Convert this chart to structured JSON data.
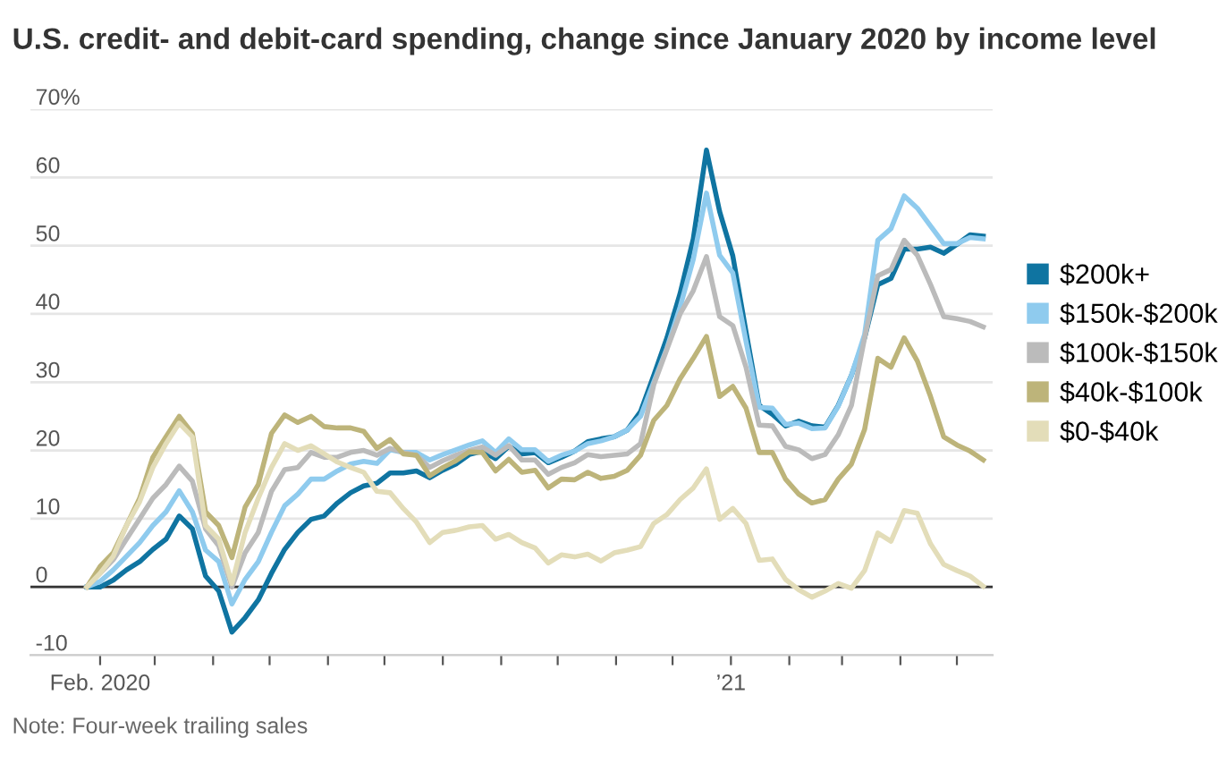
{
  "chart_data": {
    "type": "line",
    "title": "U.S. credit- and debit-card spending, change since January 2020 by income level",
    "x": [
      "2020-01-25",
      "2020-02-01",
      "2020-02-08",
      "2020-02-15",
      "2020-02-22",
      "2020-02-29",
      "2020-03-07",
      "2020-03-14",
      "2020-03-21",
      "2020-03-28",
      "2020-04-04",
      "2020-04-11",
      "2020-04-18",
      "2020-04-25",
      "2020-05-02",
      "2020-05-09",
      "2020-05-16",
      "2020-05-23",
      "2020-05-30",
      "2020-06-06",
      "2020-06-13",
      "2020-06-20",
      "2020-06-27",
      "2020-07-04",
      "2020-07-11",
      "2020-07-18",
      "2020-07-25",
      "2020-08-01",
      "2020-08-08",
      "2020-08-15",
      "2020-08-22",
      "2020-08-29",
      "2020-09-05",
      "2020-09-12",
      "2020-09-19",
      "2020-09-26",
      "2020-10-03",
      "2020-10-10",
      "2020-10-17",
      "2020-10-24",
      "2020-10-31",
      "2020-11-07",
      "2020-11-14",
      "2020-11-21",
      "2020-11-28",
      "2020-12-05",
      "2020-12-12",
      "2020-12-19",
      "2020-12-26",
      "2021-01-02",
      "2021-01-09",
      "2021-01-16",
      "2021-01-23",
      "2021-01-30",
      "2021-02-06",
      "2021-02-13",
      "2021-02-20",
      "2021-02-27",
      "2021-03-06",
      "2021-03-13",
      "2021-03-20",
      "2021-03-27",
      "2021-04-03",
      "2021-04-10",
      "2021-04-17",
      "2021-04-24",
      "2021-05-01",
      "2021-05-08",
      "2021-05-15"
    ],
    "series": [
      {
        "name": "$200k+",
        "color": "#0f74a1",
        "values": [
          0,
          0,
          1,
          2.5,
          3.7,
          5.5,
          7,
          10.4,
          8.5,
          1.6,
          -0.6,
          -6.6,
          -4.5,
          -1.9,
          2,
          5.5,
          8,
          9.9,
          10.4,
          12.3,
          13.8,
          14.8,
          15.2,
          16.7,
          16.7,
          17,
          16,
          17.1,
          18,
          19.4,
          19.9,
          18.8,
          20.6,
          19.5,
          19.7,
          18.2,
          19,
          19.9,
          21.3,
          21.7,
          22,
          23,
          25.7,
          31,
          36.5,
          43,
          51,
          64,
          55,
          48.5,
          37.4,
          26.6,
          25.3,
          23.6,
          24.3,
          23.6,
          23.4,
          26.6,
          31,
          36.5,
          44.3,
          45.2,
          49.5,
          49.5,
          49.8,
          48.9,
          50.2,
          51.6,
          51.4
        ]
      },
      {
        "name": "$150k-$200k",
        "color": "#8fcbee",
        "values": [
          0,
          0.8,
          2.5,
          4.5,
          6.5,
          9,
          11,
          14.1,
          11,
          5.4,
          3.7,
          -2.5,
          1.1,
          3.7,
          8,
          11.9,
          13.6,
          15.8,
          15.8,
          17,
          18,
          18.4,
          18.1,
          20.1,
          19.7,
          19.7,
          18.6,
          19.4,
          20.1,
          20.8,
          21.4,
          19.7,
          21.7,
          20.1,
          20.1,
          18.4,
          19.3,
          19.9,
          21,
          21.4,
          22,
          23,
          25,
          30,
          35,
          41,
          48,
          57.7,
          48.6,
          46,
          36,
          26.3,
          26.2,
          23.8,
          24,
          23.2,
          23.3,
          26.5,
          31,
          37,
          50.8,
          52.5,
          57.3,
          55.5,
          52.9,
          50.3,
          50.3,
          51.2,
          51
        ]
      },
      {
        "name": "$100k-$150k",
        "color": "#bbbbbb",
        "values": [
          0,
          2,
          4,
          7,
          10,
          13,
          15,
          17.7,
          15.5,
          8.5,
          6,
          0,
          5,
          8,
          14,
          17.2,
          17.5,
          19.7,
          19,
          19,
          19.7,
          20,
          19.3,
          20.3,
          19.7,
          19.3,
          17.5,
          18.5,
          19.3,
          20,
          20.5,
          19.3,
          20.7,
          18.6,
          18.6,
          16.5,
          17.5,
          18.2,
          19.4,
          19.1,
          19.3,
          19.5,
          21,
          29.6,
          34.8,
          40,
          43.4,
          48.4,
          39.6,
          38.3,
          32.2,
          23.7,
          23.6,
          20.6,
          20.1,
          18.8,
          19.4,
          22.3,
          26.6,
          36.5,
          45.6,
          46.5,
          50.8,
          48.6,
          44.3,
          39.6,
          39.3,
          38.9,
          38.1
        ]
      },
      {
        "name": "$40k-$100k",
        "color": "#bdb47a",
        "values": [
          0,
          3,
          5,
          9,
          13,
          19,
          22,
          25,
          22.5,
          11,
          9,
          4.3,
          11.7,
          15,
          22.5,
          25.2,
          24.1,
          25,
          23.5,
          23.3,
          23.3,
          22.8,
          20.3,
          21.6,
          19.5,
          19.3,
          16.3,
          17.5,
          18.5,
          19.8,
          19.7,
          17,
          18.7,
          16.8,
          17.1,
          14.5,
          15.8,
          15.7,
          16.8,
          15.9,
          16.2,
          17.1,
          19.3,
          24.4,
          26.6,
          30.5,
          33.5,
          36.7,
          27.9,
          29.4,
          26.2,
          19.7,
          19.7,
          15.8,
          13.6,
          12.3,
          12.8,
          15.8,
          18,
          23.1,
          33.5,
          32.2,
          36.5,
          33.1,
          27.9,
          22,
          20.8,
          19.9,
          18.6
        ]
      },
      {
        "name": "$0-$40k",
        "color": "#e3ddb9",
        "values": [
          0,
          2,
          4.5,
          9,
          12.5,
          17.5,
          21,
          24,
          22,
          9,
          7,
          0.5,
          8,
          13,
          17.5,
          21,
          20,
          20.7,
          19.5,
          18.3,
          17.5,
          16.8,
          14,
          13.8,
          11.5,
          9.5,
          6.5,
          8,
          8.3,
          8.8,
          9,
          7,
          7.7,
          6.5,
          5.7,
          3.5,
          4.7,
          4.4,
          4.8,
          3.8,
          5,
          5.4,
          5.9,
          9.3,
          10.6,
          12.8,
          14.5,
          17.3,
          9.9,
          11.5,
          9.3,
          3.9,
          4.1,
          1.1,
          -0.4,
          -1.5,
          -0.6,
          0.5,
          -0.2,
          2.4,
          7.9,
          6.7,
          11.2,
          10.8,
          6.3,
          3.3,
          2.4,
          1.6,
          0.1
        ]
      }
    ],
    "xlim": [
      "2019-12-26",
      "2021-05-20"
    ],
    "xticks": [
      {
        "value": "2020-02-01",
        "label": "Feb. 2020"
      },
      {
        "value": "2020-03-01",
        "label": null
      },
      {
        "value": "2020-04-01",
        "label": null
      },
      {
        "value": "2020-05-01",
        "label": null
      },
      {
        "value": "2020-06-01",
        "label": null
      },
      {
        "value": "2020-07-01",
        "label": null
      },
      {
        "value": "2020-08-01",
        "label": null
      },
      {
        "value": "2020-09-01",
        "label": null
      },
      {
        "value": "2020-10-01",
        "label": null
      },
      {
        "value": "2020-11-01",
        "label": null
      },
      {
        "value": "2020-12-01",
        "label": null
      },
      {
        "value": "2021-01-01",
        "label": "’21"
      },
      {
        "value": "2021-02-01",
        "label": null
      },
      {
        "value": "2021-03-01",
        "label": null
      },
      {
        "value": "2021-04-01",
        "label": null
      },
      {
        "value": "2021-05-01",
        "label": null
      }
    ],
    "ylim": [
      -10,
      70
    ],
    "yticks": [
      -10,
      0,
      10,
      20,
      30,
      40,
      50,
      60,
      {
        "value": 70,
        "label": "70%"
      }
    ],
    "ref_lines": [
      {
        "axis": "y",
        "value": 0,
        "color": "#333333"
      }
    ],
    "grid": "y",
    "legend": "right",
    "marker": "none",
    "line_style": "solid",
    "annotations": [
      "Note: Four-week trailing sales"
    ]
  }
}
